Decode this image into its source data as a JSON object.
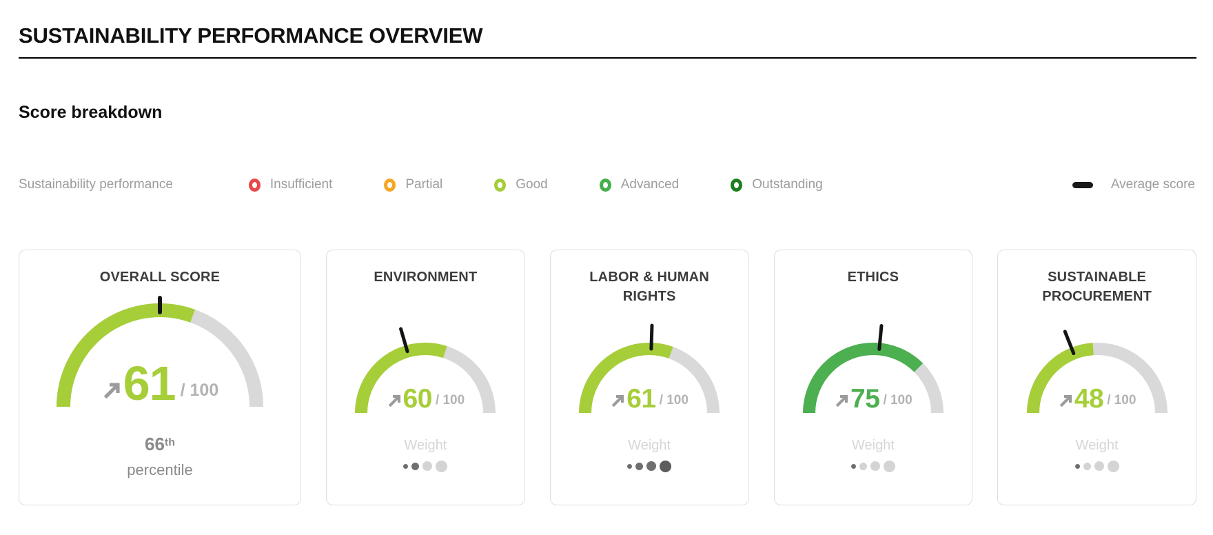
{
  "header": {
    "title": "SUSTAINABILITY PERFORMANCE OVERVIEW",
    "section_title": "Score breakdown"
  },
  "legend": {
    "caption": "Sustainability performance",
    "levels": [
      {
        "label": "Insufficient",
        "color": "#e8474b"
      },
      {
        "label": "Partial",
        "color": "#f6a623"
      },
      {
        "label": "Good",
        "color": "#a5cd39"
      },
      {
        "label": "Advanced",
        "color": "#43b049"
      },
      {
        "label": "Outstanding",
        "color": "#1d7f1f"
      }
    ],
    "average_label": "Average score",
    "average_color": "#191919"
  },
  "cards": [
    {
      "title": "OVERALL SCORE",
      "score": 61,
      "max": 100,
      "max_label": "/ 100",
      "average_marker": 50,
      "arc_color": "#a6ce39",
      "percentile_value": "66",
      "percentile_suffix": "th",
      "percentile_label": "percentile"
    },
    {
      "title": "ENVIRONMENT",
      "score": 60,
      "max": 100,
      "max_label": "/ 100",
      "average_marker": 41,
      "arc_color": "#a6ce39",
      "weight_label": "Weight",
      "dots": [
        1,
        1,
        0,
        0
      ]
    },
    {
      "title": "LABOR & HUMAN RIGHTS",
      "score": 61,
      "max": 100,
      "max_label": "/ 100",
      "average_marker": 51,
      "arc_color": "#a6ce39",
      "weight_label": "Weight",
      "dots": [
        1,
        1,
        1,
        1
      ]
    },
    {
      "title": "ETHICS",
      "score": 75,
      "max": 100,
      "max_label": "/ 100",
      "average_marker": 53,
      "arc_color": "#4caf50",
      "weight_label": "Weight",
      "dots": [
        1,
        0,
        0,
        0
      ]
    },
    {
      "title": "SUSTAINABLE PROCUREMENT",
      "score": 48,
      "max": 100,
      "max_label": "/ 100",
      "average_marker": 38,
      "arc_color": "#a6ce39",
      "weight_label": "Weight",
      "dots": [
        1,
        0,
        0,
        0
      ]
    }
  ],
  "chart_data": {
    "type": "gauge",
    "max": 100,
    "charts": [
      {
        "title": "OVERALL SCORE",
        "score": 61,
        "average_marker": 50,
        "percentile": "66th"
      },
      {
        "title": "ENVIRONMENT",
        "score": 60,
        "average_marker": 41,
        "weight_dots_filled": 2,
        "weight_dots_total": 4
      },
      {
        "title": "LABOR & HUMAN RIGHTS",
        "score": 61,
        "average_marker": 51,
        "weight_dots_filled": 4,
        "weight_dots_total": 4
      },
      {
        "title": "ETHICS",
        "score": 75,
        "average_marker": 53,
        "weight_dots_filled": 1,
        "weight_dots_total": 4
      },
      {
        "title": "SUSTAINABLE PROCUREMENT",
        "score": 48,
        "average_marker": 38,
        "weight_dots_filled": 1,
        "weight_dots_total": 4
      }
    ],
    "legend_levels": [
      "Insufficient",
      "Partial",
      "Good",
      "Advanced",
      "Outstanding"
    ],
    "legend_extra": [
      "Average score"
    ]
  }
}
